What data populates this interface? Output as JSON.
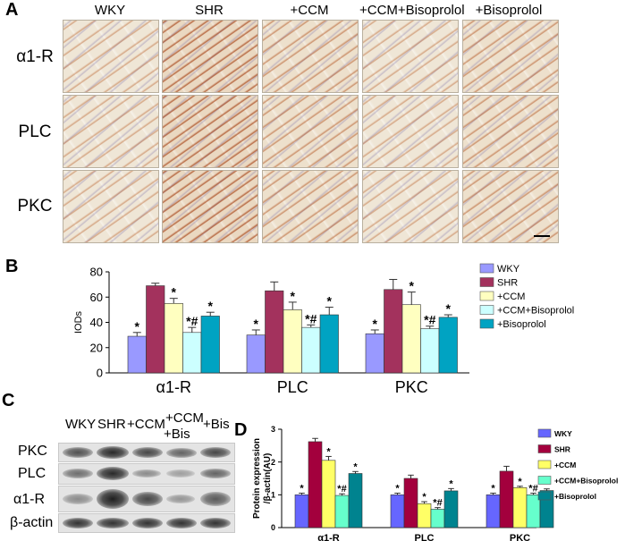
{
  "panels": {
    "a": "A",
    "b": "B",
    "c": "C",
    "d": "D"
  },
  "histology": {
    "columns": [
      "WKY",
      "SHR",
      "+CCM",
      "+CCM+Bisoprolol",
      "+Bisoprolol"
    ],
    "rows": [
      "α1-R",
      "PLC",
      "PKC"
    ]
  },
  "blot": {
    "lanes": [
      "WKY",
      "SHR",
      "+CCM",
      "+CCM\n+Bis",
      "+Bis"
    ],
    "lane_line1": [
      "WKY",
      "SHR",
      "+CCM",
      "+CCM",
      "+Bis"
    ],
    "lane_line2": [
      "",
      "",
      "",
      "+Bis",
      ""
    ],
    "rows": [
      "PKC",
      "PLC",
      "α1-R",
      "β-actin"
    ]
  },
  "chart_data": [
    {
      "panel": "B",
      "type": "bar",
      "categories": [
        "α1-R",
        "PLC",
        "PKC"
      ],
      "ylabel": "IODs",
      "xlabel": "",
      "ylim": [
        0,
        80
      ],
      "yticks": [
        0,
        20,
        40,
        60,
        80
      ],
      "legend_position": "right",
      "series": [
        {
          "name": "WKY",
          "color": "#9999ff",
          "values": [
            29,
            30,
            31
          ],
          "errors": [
            3,
            4,
            3
          ],
          "marks": [
            "*",
            "*",
            "*"
          ]
        },
        {
          "name": "SHR",
          "color": "#a3325d",
          "values": [
            69,
            65,
            66
          ],
          "errors": [
            2,
            7,
            8
          ],
          "marks": [
            "",
            "",
            ""
          ]
        },
        {
          "name": "+CCM",
          "color": "#ffffc0",
          "values": [
            55,
            50,
            54
          ],
          "errors": [
            4,
            6,
            10
          ],
          "marks": [
            "*",
            "*",
            "*"
          ]
        },
        {
          "name": "+CCM+Bisoprolol",
          "color": "#ccffff",
          "values": [
            32,
            36,
            35
          ],
          "errors": [
            4,
            2,
            2
          ],
          "marks": [
            "*#",
            "*#",
            "*#"
          ]
        },
        {
          "name": "+Bisoprolol",
          "color": "#00a3c2",
          "values": [
            45,
            46,
            44
          ],
          "errors": [
            3,
            6,
            2
          ],
          "marks": [
            "*",
            "*",
            "*"
          ]
        }
      ]
    },
    {
      "panel": "D",
      "type": "bar",
      "categories": [
        "α1-R",
        "PLC",
        "PKC"
      ],
      "ylabel": "Protein expression /β-actin(AU)",
      "ylabel_line1": "Protein expression",
      "ylabel_line2": "/β-actin(AU)",
      "xlabel": "",
      "ylim": [
        0,
        3
      ],
      "yticks": [
        0,
        1,
        2,
        3
      ],
      "legend_position": "right",
      "series": [
        {
          "name": "WKY",
          "color": "#6666ff",
          "values": [
            1.0,
            1.0,
            1.0
          ],
          "errors": [
            0.05,
            0.05,
            0.05
          ],
          "marks": [
            "*",
            "*",
            "*"
          ]
        },
        {
          "name": "SHR",
          "color": "#a3003d",
          "values": [
            2.62,
            1.5,
            1.72
          ],
          "errors": [
            0.1,
            0.1,
            0.15
          ],
          "marks": [
            "",
            "",
            ""
          ]
        },
        {
          "name": "+CCM",
          "color": "#ffff66",
          "values": [
            2.05,
            0.73,
            1.22
          ],
          "errors": [
            0.12,
            0.06,
            0.04
          ],
          "marks": [
            "*",
            "*",
            "*"
          ]
        },
        {
          "name": "+CCM+Bisoprolol",
          "color": "#66ffcc",
          "values": [
            0.98,
            0.56,
            1.0
          ],
          "errors": [
            0.05,
            0.05,
            0.05
          ],
          "marks": [
            "*#",
            "*#",
            "*#"
          ]
        },
        {
          "name": "+Bisoprolol",
          "color": "#00838f",
          "values": [
            1.65,
            1.12,
            1.13
          ],
          "errors": [
            0.06,
            0.07,
            0.05
          ],
          "marks": [
            "*",
            "*",
            "*"
          ]
        }
      ]
    }
  ]
}
